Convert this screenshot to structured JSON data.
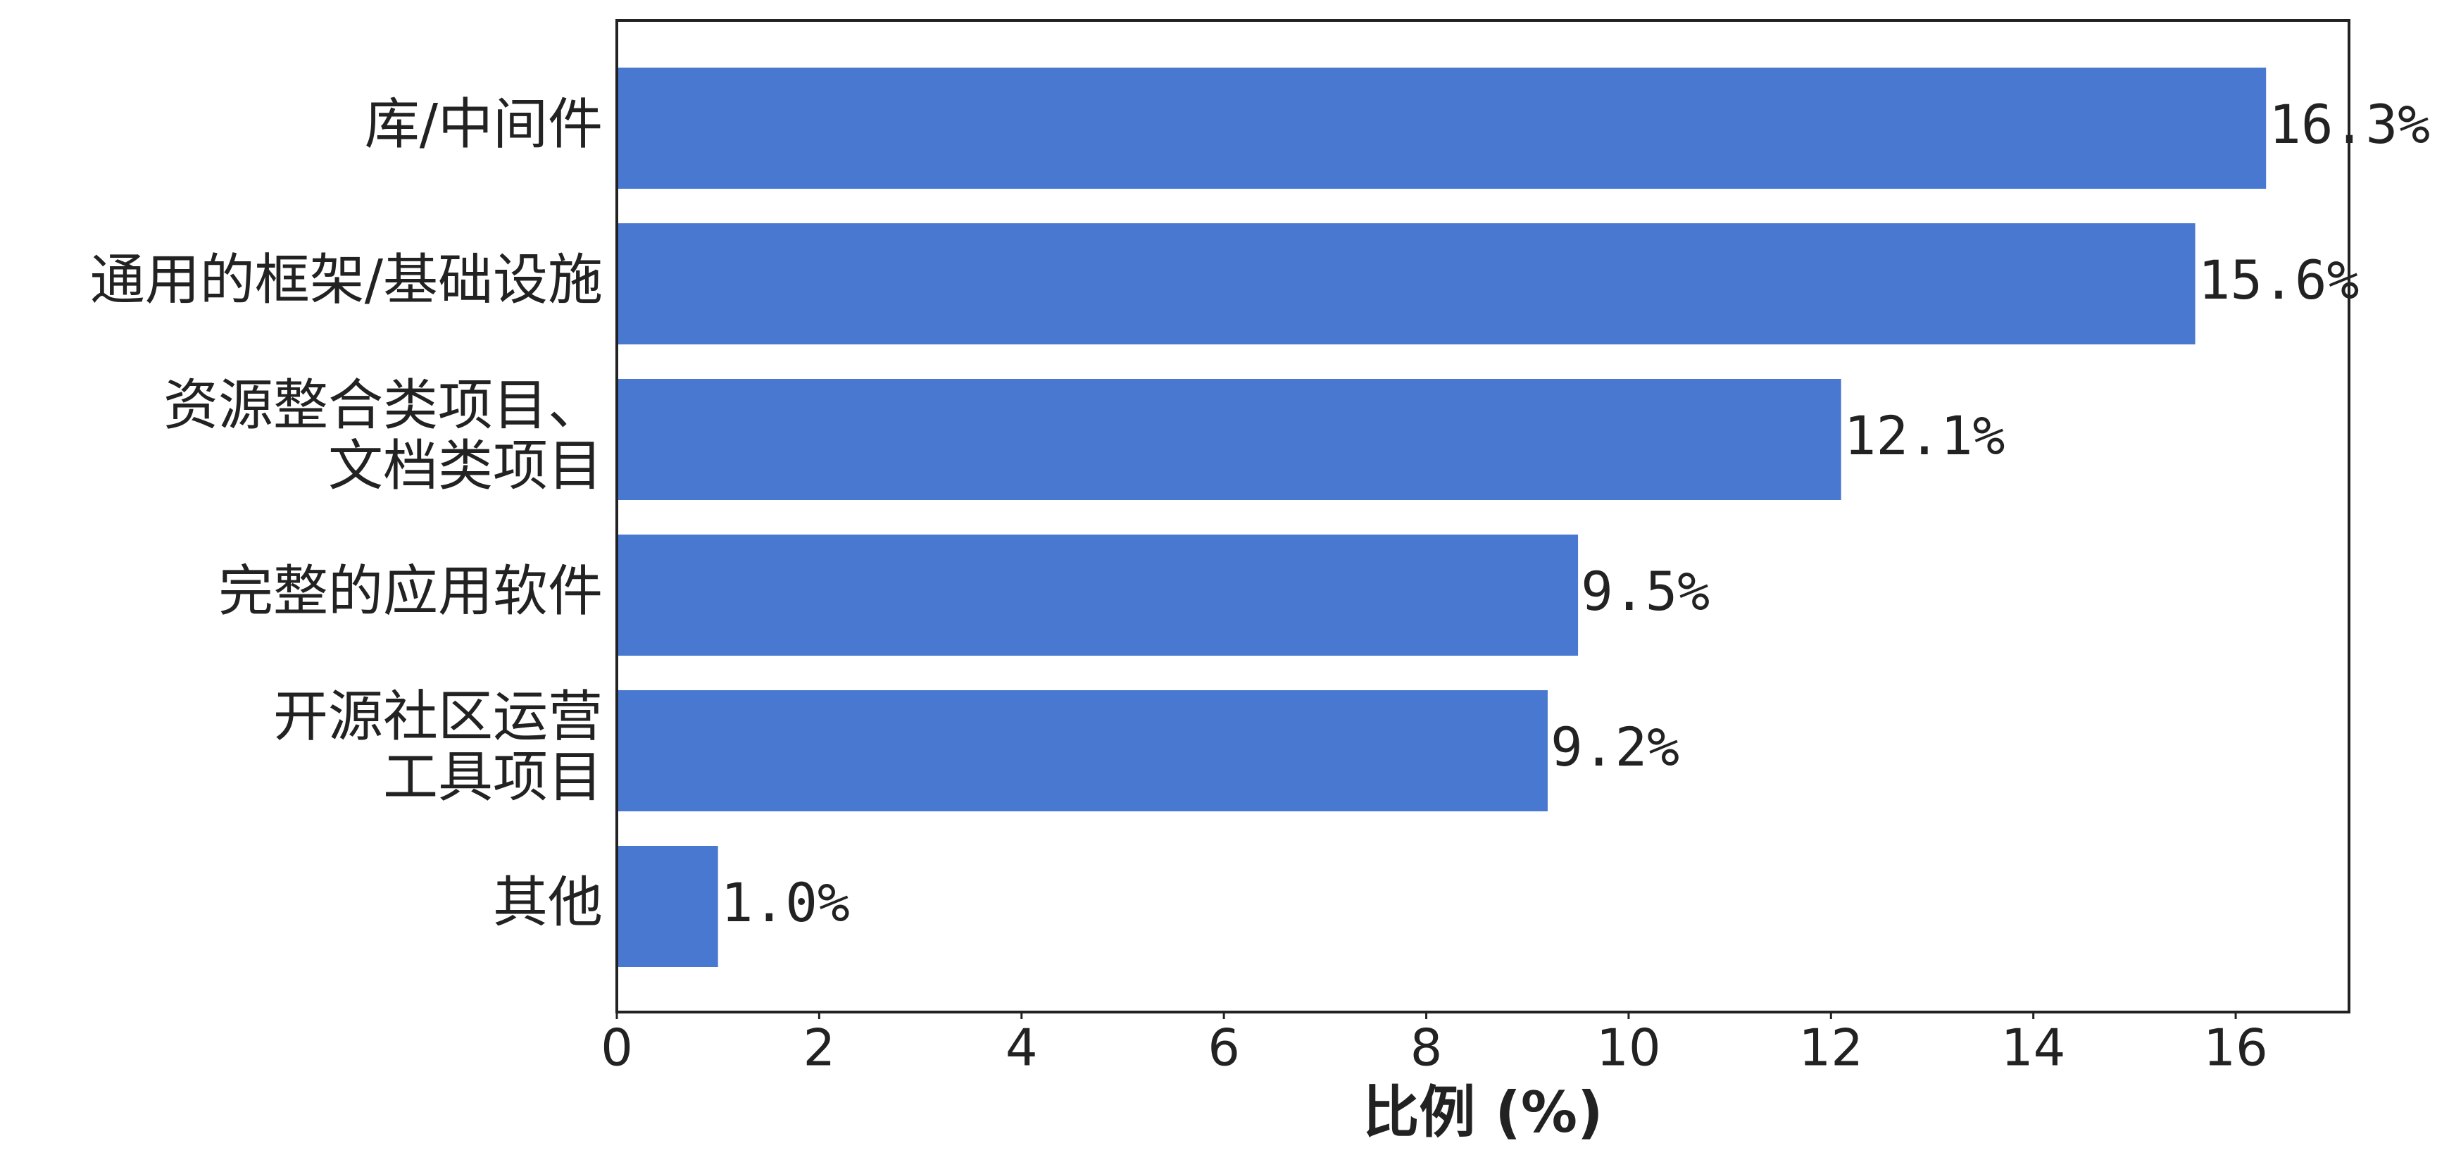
{
  "chart_data": {
    "type": "bar",
    "orientation": "horizontal",
    "categories": [
      "库/中间件",
      "通用的框架/基础设施",
      "资源整合类项目、\n文档类项目",
      "完整的应用软件",
      "开源社区运营\n工具项目",
      "其他"
    ],
    "values": [
      16.3,
      15.6,
      12.1,
      9.5,
      9.2,
      1.0
    ],
    "value_labels": [
      "16.3%",
      "15.6%",
      "12.1%",
      "9.5%",
      "9.2%",
      "1.0%"
    ],
    "color": "#4878cf",
    "xlabel": "比例 (%)",
    "xlim": [
      0,
      17.12
    ],
    "xticks": [
      0,
      2,
      4,
      6,
      8,
      10,
      12,
      14,
      16
    ],
    "grid": false
  }
}
